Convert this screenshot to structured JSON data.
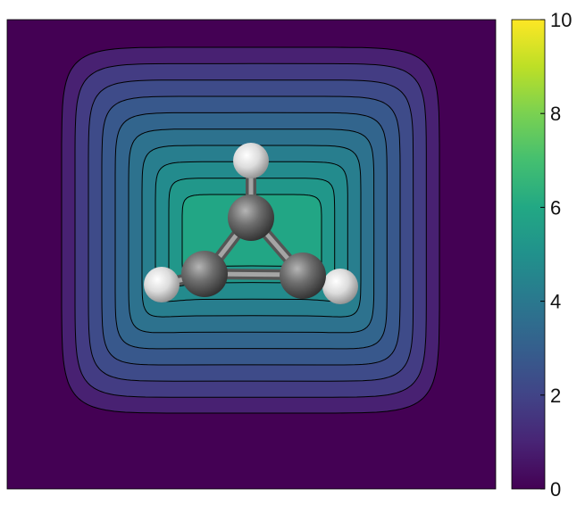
{
  "chart_data": {
    "type": "heatmap",
    "title": "",
    "xlabel": "",
    "ylabel": "",
    "colormap": "viridis",
    "colorbar": {
      "range": [
        0,
        10
      ],
      "ticks": [
        0,
        2,
        4,
        6,
        8,
        10
      ],
      "tick_labels": [
        "0",
        "2",
        "4",
        "6",
        "8",
        "10"
      ]
    },
    "contour_levels": [
      0.5,
      1.5,
      2.0,
      2.5,
      3.0,
      3.5,
      4.0,
      4.5,
      5.0,
      5.5
    ],
    "peak_value": 6.3,
    "background_value": 0.2,
    "overlay": {
      "molecule": "C3H3",
      "atoms": [
        {
          "element": "C",
          "label": "carbon-top"
        },
        {
          "element": "C",
          "label": "carbon-left"
        },
        {
          "element": "C",
          "label": "carbon-right"
        },
        {
          "element": "H",
          "label": "hydrogen-top"
        },
        {
          "element": "H",
          "label": "hydrogen-left"
        },
        {
          "element": "H",
          "label": "hydrogen-right"
        }
      ]
    }
  }
}
